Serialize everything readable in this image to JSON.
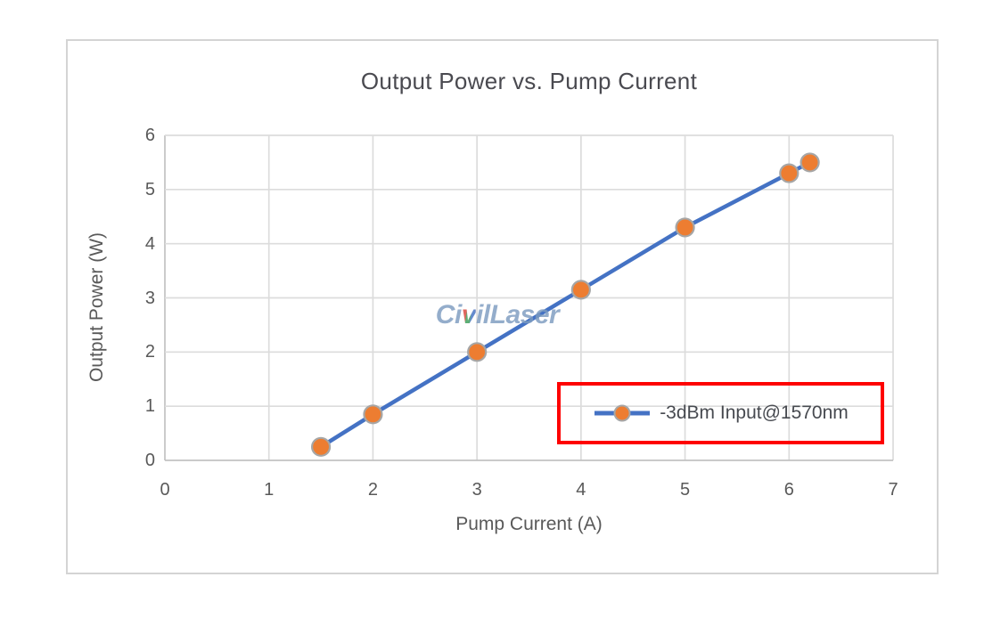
{
  "chart_data": {
    "type": "line",
    "title": "Output Power vs. Pump Current",
    "xlabel": "Pump Current (A)",
    "ylabel": "Output Power (W)",
    "xlim": [
      0,
      7
    ],
    "ylim": [
      0,
      6
    ],
    "xticks": [
      0,
      1,
      2,
      3,
      4,
      5,
      6,
      7
    ],
    "yticks": [
      0,
      1,
      2,
      3,
      4,
      5,
      6
    ],
    "grid": true,
    "legend_position": "inside-bottom-right",
    "series": [
      {
        "name": "-3dBm Input@1570nm",
        "x": [
          1.5,
          2,
          3,
          4,
          5,
          6,
          6.2
        ],
        "y": [
          0.25,
          0.85,
          2.0,
          3.15,
          4.3,
          5.3,
          5.5
        ]
      }
    ],
    "annotations": [
      {
        "kind": "highlight-rectangle",
        "target": "legend",
        "color": "#fe0101"
      }
    ],
    "watermark": {
      "text": "CivilLaser",
      "color": "#7d9cc0"
    }
  },
  "colors": {
    "series_line": "#4472c4",
    "marker_fill": "#ed7d31",
    "marker_edge": "#a6a6a6",
    "gridline": "#dcdcdc",
    "axis_line": "#c2c2c2",
    "tick_text": "#595959",
    "title_text": "#4a4a50",
    "frame_border": "#d4d4d4",
    "legend_highlight": "#fe0101"
  }
}
